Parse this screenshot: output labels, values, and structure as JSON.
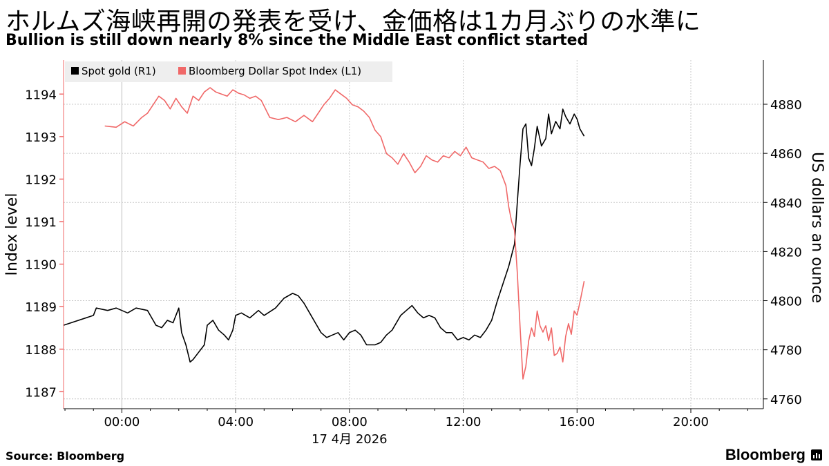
{
  "title": "ホルムズ海峡再開の発表を受け、金価格は1カ月ぶりの水準に",
  "subtitle": "Bullion is still down nearly 8% since the Middle East conflict started",
  "source": "Source: Bloomberg",
  "brand": "Bloomberg",
  "colors": {
    "gold": "#000000",
    "dollar": "#f06868",
    "grid": "#c8c8c8",
    "axis": "#000000",
    "legend_bg": "#eeeeee"
  },
  "chart_data": {
    "type": "line",
    "date_label": "17 4月 2026",
    "x_ticks": [
      "00:00",
      "04:00",
      "08:00",
      "12:00",
      "16:00",
      "20:00"
    ],
    "x_range_hours": [
      -2.05,
      22.55
    ],
    "left_axis": {
      "label": "Index level",
      "range": [
        1186.6,
        1194.8
      ],
      "ticks": [
        "1187",
        "1188",
        "1189",
        "1190",
        "1191",
        "1192",
        "1193",
        "1194"
      ]
    },
    "right_axis": {
      "label": "US dollars an ounce",
      "range": [
        4756,
        4898
      ],
      "ticks": [
        "4760",
        "4780",
        "4800",
        "4820",
        "4840",
        "4860",
        "4880"
      ]
    },
    "legend": [
      {
        "key": "gold",
        "label": "Spot gold (R1)"
      },
      {
        "key": "dollar",
        "label": "Bloomberg Dollar Spot Index (L1)"
      }
    ],
    "series": [
      {
        "name": "Spot gold (R1)",
        "axis": "right",
        "color": "#000000",
        "x": [
          -2.05,
          -1.0,
          -0.9,
          -0.5,
          -0.2,
          0.2,
          0.5,
          0.9,
          1.0,
          1.2,
          1.4,
          1.6,
          1.8,
          2.0,
          2.1,
          2.25,
          2.4,
          2.5,
          2.7,
          2.9,
          3.0,
          3.2,
          3.4,
          3.6,
          3.75,
          3.9,
          4.0,
          4.2,
          4.5,
          4.8,
          5.0,
          5.4,
          5.7,
          6.0,
          6.2,
          6.4,
          6.6,
          6.8,
          7.0,
          7.2,
          7.4,
          7.6,
          7.8,
          8.0,
          8.2,
          8.4,
          8.6,
          8.9,
          9.1,
          9.3,
          9.5,
          9.8,
          10.0,
          10.2,
          10.4,
          10.6,
          10.8,
          11.0,
          11.2,
          11.4,
          11.6,
          11.8,
          12.0,
          12.2,
          12.4,
          12.6,
          12.8,
          13.0,
          13.2,
          13.4,
          13.6,
          13.8,
          13.9,
          14.0,
          14.1,
          14.2,
          14.3,
          14.4,
          14.5,
          14.6,
          14.75,
          14.9,
          15.0,
          15.1,
          15.25,
          15.4,
          15.5,
          15.6,
          15.75,
          15.9,
          16.0,
          16.1,
          16.2,
          16.25
        ],
        "y": [
          4790,
          4794,
          4797,
          4796,
          4797,
          4795,
          4797,
          4796,
          4794,
          4790,
          4789,
          4792,
          4791,
          4797,
          4787,
          4782,
          4775,
          4776,
          4779,
          4782,
          4790,
          4792,
          4788,
          4786,
          4784,
          4788,
          4794,
          4795,
          4793,
          4796,
          4794,
          4797,
          4801,
          4803,
          4802,
          4799,
          4795,
          4791,
          4787,
          4785,
          4786,
          4787,
          4784,
          4787,
          4788,
          4786,
          4782,
          4782,
          4783,
          4786,
          4788,
          4794,
          4796,
          4798,
          4795,
          4793,
          4794,
          4793,
          4789,
          4787,
          4787,
          4784,
          4785,
          4784,
          4786,
          4785,
          4788,
          4792,
          4800,
          4807,
          4814,
          4823,
          4840,
          4856,
          4870,
          4872,
          4858,
          4855,
          4862,
          4871,
          4863,
          4866,
          4876,
          4868,
          4873,
          4870,
          4878,
          4875,
          4872,
          4876,
          4874,
          4870,
          4868,
          4867
        ]
      },
      {
        "name": "Bloomberg Dollar Spot Index (L1)",
        "axis": "left",
        "color": "#f06868",
        "x": [
          -0.6,
          -0.2,
          0.1,
          0.4,
          0.7,
          0.9,
          1.1,
          1.3,
          1.5,
          1.7,
          1.9,
          2.1,
          2.3,
          2.5,
          2.7,
          2.9,
          3.1,
          3.3,
          3.5,
          3.7,
          3.9,
          4.1,
          4.3,
          4.5,
          4.7,
          4.9,
          5.2,
          5.5,
          5.8,
          6.1,
          6.4,
          6.7,
          6.9,
          7.1,
          7.3,
          7.5,
          7.7,
          7.9,
          8.1,
          8.3,
          8.5,
          8.7,
          8.9,
          9.1,
          9.3,
          9.5,
          9.7,
          9.9,
          10.1,
          10.3,
          10.5,
          10.7,
          10.9,
          11.1,
          11.3,
          11.5,
          11.7,
          11.9,
          12.1,
          12.3,
          12.5,
          12.7,
          12.9,
          13.1,
          13.3,
          13.5,
          13.6,
          13.7,
          13.8,
          13.9,
          14.0,
          14.1,
          14.2,
          14.3,
          14.4,
          14.5,
          14.6,
          14.7,
          14.8,
          14.9,
          15.0,
          15.1,
          15.2,
          15.3,
          15.4,
          15.5,
          15.6,
          15.7,
          15.8,
          15.9,
          16.0,
          16.1,
          16.25
        ],
        "y": [
          1193.25,
          1193.22,
          1193.35,
          1193.25,
          1193.45,
          1193.55,
          1193.75,
          1193.95,
          1193.85,
          1193.65,
          1193.9,
          1193.7,
          1193.55,
          1193.95,
          1193.85,
          1194.05,
          1194.15,
          1194.05,
          1194.0,
          1193.95,
          1194.1,
          1194.02,
          1193.98,
          1193.9,
          1193.95,
          1193.85,
          1193.45,
          1193.4,
          1193.45,
          1193.35,
          1193.5,
          1193.35,
          1193.55,
          1193.75,
          1193.9,
          1194.1,
          1194.0,
          1193.9,
          1193.75,
          1193.7,
          1193.6,
          1193.45,
          1193.15,
          1193.0,
          1192.6,
          1192.5,
          1192.35,
          1192.6,
          1192.4,
          1192.15,
          1192.3,
          1192.55,
          1192.45,
          1192.4,
          1192.55,
          1192.5,
          1192.65,
          1192.55,
          1192.75,
          1192.5,
          1192.45,
          1192.4,
          1192.25,
          1192.3,
          1192.2,
          1191.85,
          1191.35,
          1191.0,
          1190.8,
          1189.8,
          1188.5,
          1187.3,
          1187.6,
          1188.2,
          1188.5,
          1188.3,
          1188.9,
          1188.55,
          1188.4,
          1188.55,
          1188.2,
          1188.5,
          1187.85,
          1187.9,
          1188.05,
          1187.7,
          1188.3,
          1188.6,
          1188.35,
          1188.9,
          1188.8,
          1189.1,
          1189.6
        ]
      }
    ]
  }
}
